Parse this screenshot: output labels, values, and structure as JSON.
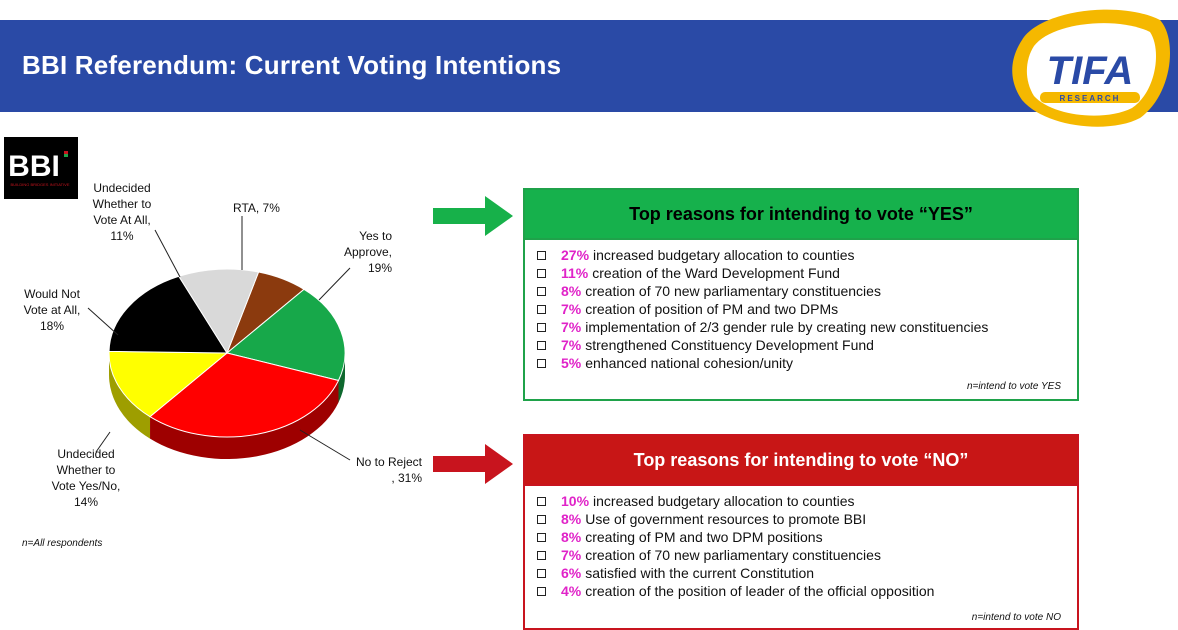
{
  "header": {
    "title": "BBI Referendum: Current Voting Intentions"
  },
  "logo": {
    "main_text": "TIFA",
    "sub_text": "RESEARCH"
  },
  "bbi_logo": {
    "text": "BBI",
    "tagline": "BUILDING BRIDGES INITIATIVE"
  },
  "chart_data": {
    "type": "pie",
    "slices": [
      {
        "label": "RTA",
        "value": 7,
        "text": "RTA, 7%",
        "color": "#8b3a0e"
      },
      {
        "label": "Yes to Approve",
        "value": 19,
        "text": "Yes to\nApprove,\n19%",
        "color": "#17a84a"
      },
      {
        "label": "No to Reject",
        "value": 31,
        "text": "No to Reject\n, 31%",
        "color": "#ff0000"
      },
      {
        "label": "Undecided Whether to Vote Yes/No",
        "value": 14,
        "text": "Undecided\nWhether to\nVote Yes/No,\n14%",
        "color": "#ffff00"
      },
      {
        "label": "Would Not Vote at All",
        "value": 18,
        "text": "Would Not\nVote at All,\n18%",
        "color": "#000000"
      },
      {
        "label": "Undecided Whether to Vote At All",
        "value": 11,
        "text": "Undecided\nWhether to\nVote At All,\n11%",
        "color": "#d9d9d9"
      }
    ],
    "note": "n=All respondents"
  },
  "yes_panel": {
    "title": "Top reasons for intending to vote “YES”",
    "items": [
      {
        "pct": "27%",
        "text": "increased budgetary allocation to counties"
      },
      {
        "pct": "11%",
        "text": "creation of the Ward Development Fund"
      },
      {
        "pct": "8%",
        "text": "creation of 70 new parliamentary constituencies"
      },
      {
        "pct": "7%",
        "text": "creation of position of PM and two DPMs"
      },
      {
        "pct": "7%",
        "text": "implementation of 2/3 gender rule by creating new constituencies"
      },
      {
        "pct": "7%",
        "text": "strengthened Constituency Development Fund"
      },
      {
        "pct": "5%",
        "text": "enhanced national cohesion/unity"
      }
    ],
    "note": "n=intend to vote YES",
    "color": "#16b14c"
  },
  "no_panel": {
    "title": "Top reasons for intending to vote “NO”",
    "items": [
      {
        "pct": "10%",
        "text": "increased budgetary allocation to counties"
      },
      {
        "pct": "8%",
        "text": "Use of government resources to promote BBI"
      },
      {
        "pct": "8%",
        "text": "creating of  PM and two DPM positions"
      },
      {
        "pct": "7%",
        "text": "creation of 70 new parliamentary constituencies"
      },
      {
        "pct": "6%",
        "text": "satisfied with the current Constitution"
      },
      {
        "pct": "4%",
        "text": "creation of the position of leader of the official opposition"
      }
    ],
    "note": "n=intend to vote NO",
    "color": "#c81616"
  }
}
